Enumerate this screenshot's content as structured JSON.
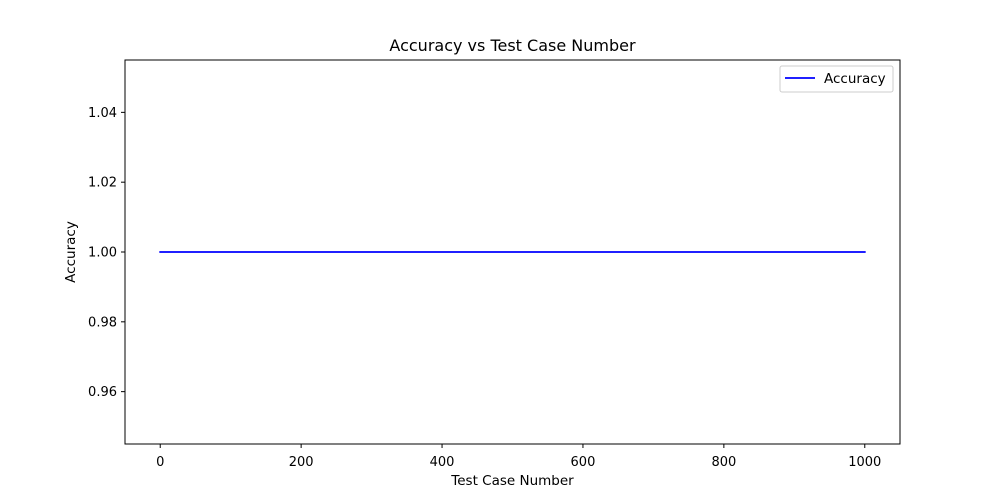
{
  "chart_data": {
    "type": "line",
    "title": "Accuracy vs Test Case Number",
    "xlabel": "Test Case Number",
    "ylabel": "Accuracy",
    "xlim": [
      -50,
      1050
    ],
    "ylim": [
      0.945,
      1.055
    ],
    "xticks": [
      0,
      200,
      400,
      600,
      800,
      1000
    ],
    "xtick_labels": [
      "0",
      "200",
      "400",
      "600",
      "800",
      "1000"
    ],
    "yticks": [
      0.96,
      0.98,
      1.0,
      1.02,
      1.04
    ],
    "ytick_labels": [
      "0.96",
      "0.98",
      "1.00",
      "1.02",
      "1.04"
    ],
    "grid": false,
    "legend_position": "top-right",
    "series": [
      {
        "name": "Accuracy",
        "color": "#0000ff",
        "x": [
          0,
          1000
        ],
        "y": [
          1.0,
          1.0
        ]
      }
    ]
  }
}
